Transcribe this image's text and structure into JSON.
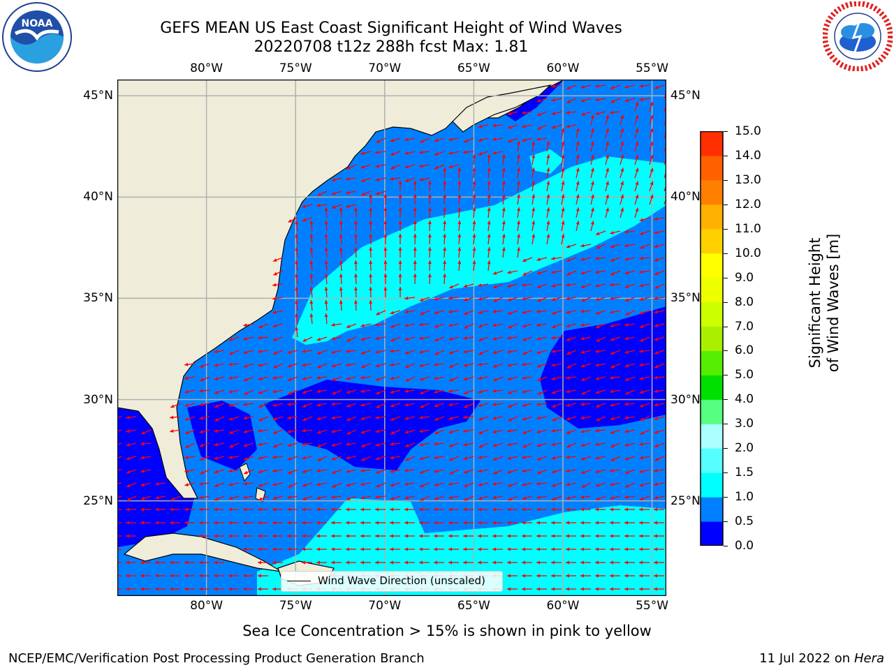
{
  "header": {
    "title_line1": "GEFS MEAN US East Coast Significant Height of Wind Waves",
    "title_line2": "20220708 t12z 288h fcst   Max: 1.81"
  },
  "logos": {
    "left": {
      "name": "noaa-logo",
      "text": "NOAA",
      "ring_text": "NATIONAL OCEANIC AND ATMOSPHERIC ADMINISTRATION · U.S. DEPARTMENT OF COMMERCE"
    },
    "right": {
      "name": "nws-logo",
      "ring_text": "NATIONAL WEATHER SERVICE"
    }
  },
  "map": {
    "lon_range": [
      -85,
      -54.2
    ],
    "lat_range": [
      20.3,
      45.8
    ],
    "lon_ticks": [
      {
        "value": -80,
        "label": "80°W"
      },
      {
        "value": -75,
        "label": "75°W"
      },
      {
        "value": -70,
        "label": "70°W"
      },
      {
        "value": -65,
        "label": "65°W"
      },
      {
        "value": -60,
        "label": "60°W"
      },
      {
        "value": -55,
        "label": "55°W"
      }
    ],
    "lat_ticks": [
      {
        "value": 45,
        "label": "45°N"
      },
      {
        "value": 40,
        "label": "40°N"
      },
      {
        "value": 35,
        "label": "35°N"
      },
      {
        "value": 30,
        "label": "30°N"
      },
      {
        "value": 25,
        "label": "25°N"
      }
    ],
    "gridlines": true,
    "colors": {
      "land": "#efedda",
      "band_0_0.5": "#0000ff",
      "band_0.5_1.0": "#0080ff",
      "band_1.0_1.5": "#00ffff",
      "arrows": "#ff0000",
      "grid": "#b0b0b0"
    },
    "legend": {
      "label": "Wind Wave Direction (unscaled)",
      "placement": "lower-center"
    }
  },
  "colorbar": {
    "title": "Significant Height of Wind Waves [m]",
    "levels": [
      "0.0",
      "0.5",
      "1.0",
      "1.5",
      "2.0",
      "3.0",
      "4.0",
      "5.0",
      "6.0",
      "7.0",
      "8.0",
      "9.0",
      "10.0",
      "11.0",
      "12.0",
      "13.0",
      "14.0",
      "15.0"
    ],
    "colors": [
      "#0000ff",
      "#0080ff",
      "#00ffff",
      "#55ffff",
      "#aaffff",
      "#55ff80",
      "#00e000",
      "#55ee00",
      "#aaee00",
      "#ccff00",
      "#eeff00",
      "#ffff00",
      "#ffd000",
      "#ffb000",
      "#ff8000",
      "#ff6000",
      "#ff3000"
    ]
  },
  "notes": {
    "sea_ice": "Sea Ice Concentration > 15% is shown in pink to yellow"
  },
  "footer": {
    "left": "NCEP/EMC/Verification Post Processing Product Generation Branch",
    "date": "11 Jul 2022 on ",
    "machine": "Hera"
  }
}
